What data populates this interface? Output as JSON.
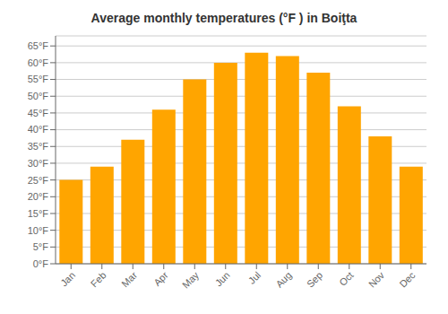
{
  "chart_data": {
    "type": "bar",
    "title": "Average monthly temperatures (°F ) in Boiţta",
    "categories": [
      "Jan",
      "Feb",
      "Mar",
      "Apr",
      "May",
      "Jun",
      "Jul",
      "Aug",
      "Sep",
      "Oct",
      "Nov",
      "Dec"
    ],
    "values": [
      25,
      29,
      37,
      46,
      55,
      60,
      63,
      62,
      57,
      47,
      38,
      29
    ],
    "color": "#FFA500",
    "ylim": [
      0,
      68
    ],
    "yticks": [
      {
        "value": 0,
        "label": "0°F"
      },
      {
        "value": 5,
        "label": "5°F"
      },
      {
        "value": 10,
        "label": "10°F"
      },
      {
        "value": 15,
        "label": "15°F"
      },
      {
        "value": 20,
        "label": "20°F"
      },
      {
        "value": 25,
        "label": "25°F"
      },
      {
        "value": 30,
        "label": "30°F"
      },
      {
        "value": 35,
        "label": "35°F"
      },
      {
        "value": 40,
        "label": "40°F"
      },
      {
        "value": 45,
        "label": "45°F"
      },
      {
        "value": 50,
        "label": "50°F"
      },
      {
        "value": 55,
        "label": "55°F"
      },
      {
        "value": 60,
        "label": "60°F"
      },
      {
        "value": 65,
        "label": "65°F"
      }
    ],
    "grid": true
  }
}
